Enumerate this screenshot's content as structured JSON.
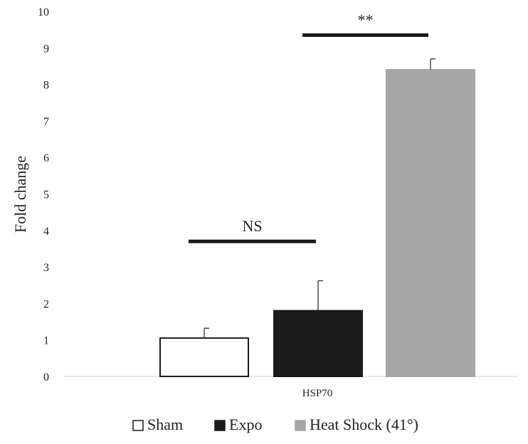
{
  "chart_data": {
    "type": "bar",
    "categories": [
      "HSP70"
    ],
    "series": [
      {
        "name": "Sham",
        "values": [
          1.05
        ],
        "error": [
          0.27
        ],
        "color": "#ffffff",
        "stroke": "#1a1a1a"
      },
      {
        "name": "Expo",
        "values": [
          1.8
        ],
        "error": [
          0.82
        ],
        "color": "#1a1a1a",
        "stroke": "#1a1a1a"
      },
      {
        "name": "Heat Shock (41°)",
        "values": [
          8.4
        ],
        "error": [
          0.3
        ],
        "color": "#a6a6a6",
        "stroke": "#a6a6a6"
      }
    ],
    "ylabel": "Fold change",
    "xlabel": "",
    "ylim": [
      0,
      10
    ],
    "yticks": [
      "0",
      "1",
      "2",
      "3",
      "4",
      "5",
      "6",
      "7",
      "8",
      "9",
      "10"
    ],
    "grid": false,
    "legend_position": "bottom",
    "annotations": [
      {
        "text": "NS",
        "from": "Sham",
        "to": "Expo",
        "level": 3.7
      },
      {
        "text": "**",
        "from": "Expo",
        "to": "Heat Shock (41°)",
        "level": 9.35
      }
    ]
  }
}
